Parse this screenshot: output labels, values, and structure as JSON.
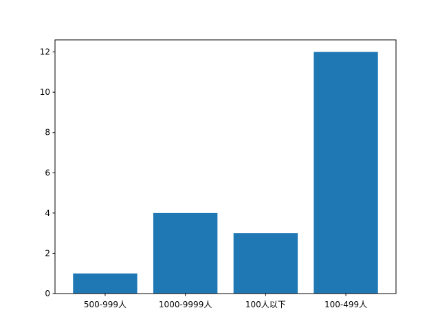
{
  "chart_data": {
    "type": "bar",
    "categories": [
      "500-999人",
      "1000-9999人",
      "100人以下",
      "100-499人"
    ],
    "values": [
      1,
      4,
      3,
      12
    ],
    "title": "",
    "xlabel": "",
    "ylabel": "",
    "ylim": [
      0,
      12.6
    ],
    "yticks": [
      0,
      2,
      4,
      6,
      8,
      10,
      12
    ],
    "grid": false,
    "bar_color": "#1f77b4"
  }
}
